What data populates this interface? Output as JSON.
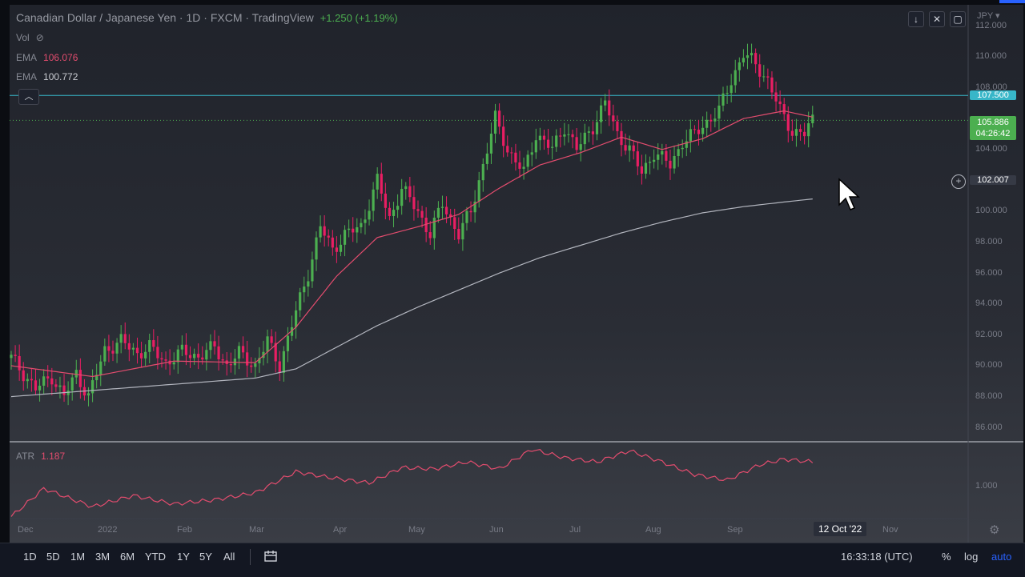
{
  "header": {
    "title": "Canadian Dollar / Japanese Yen · 1D · FXCM · TradingView",
    "change": "+1.250 (+1.19%)",
    "currency": "JPY"
  },
  "legend": {
    "vol_label": "Vol",
    "ema1_label": "EMA",
    "ema1_value": "106.076",
    "ema2_label": "EMA",
    "ema2_value": "100.772"
  },
  "price_scale": {
    "ticks": [
      "112.000",
      "110.000",
      "108.000",
      "104.000",
      "100.000",
      "98.000",
      "96.000",
      "94.000",
      "92.000",
      "90.000",
      "88.000",
      "86.000"
    ],
    "line_label": "107.500",
    "last_price": "105.886",
    "countdown": "04:26:42",
    "crosshair_price": "102.007"
  },
  "atr": {
    "label": "ATR",
    "value": "1.187",
    "tick": "1.000"
  },
  "time_axis": {
    "months": [
      "Dec",
      "2022",
      "Feb",
      "Mar",
      "Apr",
      "May",
      "Jun",
      "Jul",
      "Aug",
      "Sep",
      "Nov"
    ],
    "crosshair_date": "12 Oct '22"
  },
  "toolbar": {
    "ranges": [
      "1D",
      "5D",
      "1M",
      "3M",
      "6M",
      "YTD",
      "1Y",
      "5Y",
      "All"
    ],
    "time": "16:33:18 (UTC)",
    "percent": "%",
    "log": "log",
    "auto": "auto"
  },
  "colors": {
    "up": "#4caf50",
    "down": "#e91e63",
    "ema_fast": "#e34c6e",
    "ema_slow": "#b2b5be",
    "hline": "#38b6c8",
    "accent": "#2962ff"
  },
  "chart_data": {
    "type": "candlestick",
    "symbol": "CADJPY",
    "interval": "1D",
    "ylim": [
      85,
      113
    ],
    "hline": 107.5,
    "last": 105.886,
    "close_path": [
      [
        0,
        90.5
      ],
      [
        6,
        88.5
      ],
      [
        10,
        89.3
      ],
      [
        13,
        88.0
      ],
      [
        16,
        89.5
      ],
      [
        19,
        88.0
      ],
      [
        23,
        91.0
      ],
      [
        27,
        91.6
      ],
      [
        31,
        90.8
      ],
      [
        34,
        91.2
      ],
      [
        38,
        90.2
      ],
      [
        42,
        90.9
      ],
      [
        46,
        90.6
      ],
      [
        50,
        91.2
      ],
      [
        53,
        90.0
      ],
      [
        56,
        90.8
      ],
      [
        60,
        90.0
      ],
      [
        63,
        91.6
      ],
      [
        66,
        90.0
      ],
      [
        70,
        93.5
      ],
      [
        73,
        96.0
      ],
      [
        76,
        99.0
      ],
      [
        79,
        97.5
      ],
      [
        82,
        98.5
      ],
      [
        86,
        99.0
      ],
      [
        90,
        102.0
      ],
      [
        93,
        99.5
      ],
      [
        96,
        101.5
      ],
      [
        100,
        100.0
      ],
      [
        103,
        98.5
      ],
      [
        106,
        100.5
      ],
      [
        110,
        98.5
      ],
      [
        113,
        100.0
      ],
      [
        116,
        103.0
      ],
      [
        119,
        106.0
      ],
      [
        122,
        104.0
      ],
      [
        126,
        102.5
      ],
      [
        129,
        105.0
      ],
      [
        133,
        104.0
      ],
      [
        136,
        105.5
      ],
      [
        139,
        104.0
      ],
      [
        143,
        105.5
      ],
      [
        146,
        107.0
      ],
      [
        149,
        105.0
      ],
      [
        152,
        104.0
      ],
      [
        155,
        102.5
      ],
      [
        158,
        103.8
      ],
      [
        162,
        103.0
      ],
      [
        165,
        104.5
      ],
      [
        168,
        105.0
      ],
      [
        171,
        105.8
      ],
      [
        174,
        106.5
      ],
      [
        177,
        108.5
      ],
      [
        180,
        110.2
      ],
      [
        183,
        109.5
      ],
      [
        186,
        108.5
      ],
      [
        189,
        106.5
      ],
      [
        192,
        105.2
      ],
      [
        195,
        105.0
      ],
      [
        197,
        105.9
      ]
    ],
    "ema_fast": [
      [
        0,
        90.0
      ],
      [
        20,
        89.3
      ],
      [
        40,
        90.3
      ],
      [
        60,
        90.2
      ],
      [
        70,
        92.5
      ],
      [
        80,
        95.8
      ],
      [
        90,
        98.3
      ],
      [
        100,
        99.0
      ],
      [
        110,
        99.8
      ],
      [
        120,
        101.5
      ],
      [
        130,
        103.0
      ],
      [
        140,
        103.8
      ],
      [
        150,
        104.8
      ],
      [
        160,
        104.0
      ],
      [
        170,
        104.7
      ],
      [
        180,
        106.0
      ],
      [
        190,
        106.5
      ],
      [
        197,
        106.1
      ]
    ],
    "ema_slow": [
      [
        0,
        88.0
      ],
      [
        20,
        88.4
      ],
      [
        40,
        88.8
      ],
      [
        60,
        89.2
      ],
      [
        70,
        89.8
      ],
      [
        80,
        91.2
      ],
      [
        90,
        92.6
      ],
      [
        100,
        93.8
      ],
      [
        110,
        94.9
      ],
      [
        120,
        96.0
      ],
      [
        130,
        97.0
      ],
      [
        140,
        97.8
      ],
      [
        150,
        98.6
      ],
      [
        160,
        99.3
      ],
      [
        170,
        99.9
      ],
      [
        180,
        100.3
      ],
      [
        190,
        100.6
      ],
      [
        197,
        100.8
      ]
    ],
    "atr_path": [
      [
        0,
        0.78
      ],
      [
        8,
        0.98
      ],
      [
        20,
        0.85
      ],
      [
        30,
        0.93
      ],
      [
        40,
        0.87
      ],
      [
        50,
        0.9
      ],
      [
        60,
        0.95
      ],
      [
        70,
        1.1
      ],
      [
        78,
        1.06
      ],
      [
        88,
        1.02
      ],
      [
        96,
        1.13
      ],
      [
        104,
        1.12
      ],
      [
        112,
        1.17
      ],
      [
        120,
        1.12
      ],
      [
        128,
        1.26
      ],
      [
        136,
        1.2
      ],
      [
        144,
        1.17
      ],
      [
        152,
        1.25
      ],
      [
        160,
        1.17
      ],
      [
        168,
        1.08
      ],
      [
        176,
        1.04
      ],
      [
        184,
        1.15
      ],
      [
        190,
        1.19
      ],
      [
        197,
        1.17
      ]
    ]
  }
}
